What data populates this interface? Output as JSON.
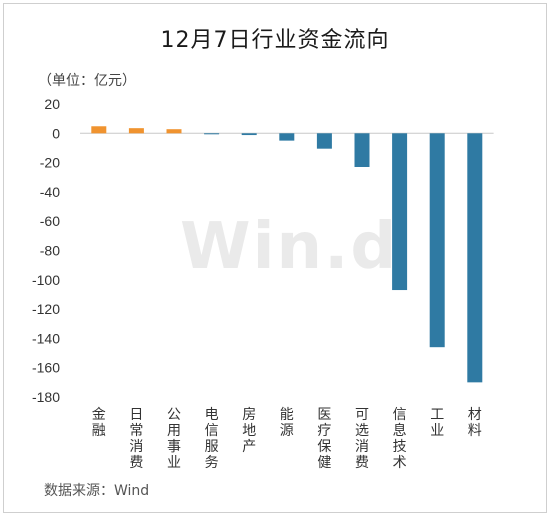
{
  "chart_data": {
    "type": "bar",
    "title": "12月7日行业资金流向",
    "unit_label": "（单位：亿元）",
    "source": "数据来源：Wind",
    "watermark": "Win.d",
    "categories": [
      "金融",
      "日常消费",
      "公用事业",
      "电信服务",
      "房地产",
      "能源",
      "医疗保健",
      "可选消费",
      "信息技术",
      "工业",
      "材料"
    ],
    "values": [
      4.8,
      3.5,
      2.8,
      -0.6,
      -1.2,
      -5.0,
      -10.5,
      -23.0,
      -107.0,
      -146.0,
      -170.0
    ],
    "ylim": [
      -180,
      20
    ],
    "yticks": [
      20,
      0,
      -20,
      -40,
      -60,
      -80,
      -100,
      -120,
      -140,
      -160,
      -180
    ],
    "grid": false,
    "colors": {
      "positive": "#f0932f",
      "negative": "#2f7aa3"
    }
  }
}
